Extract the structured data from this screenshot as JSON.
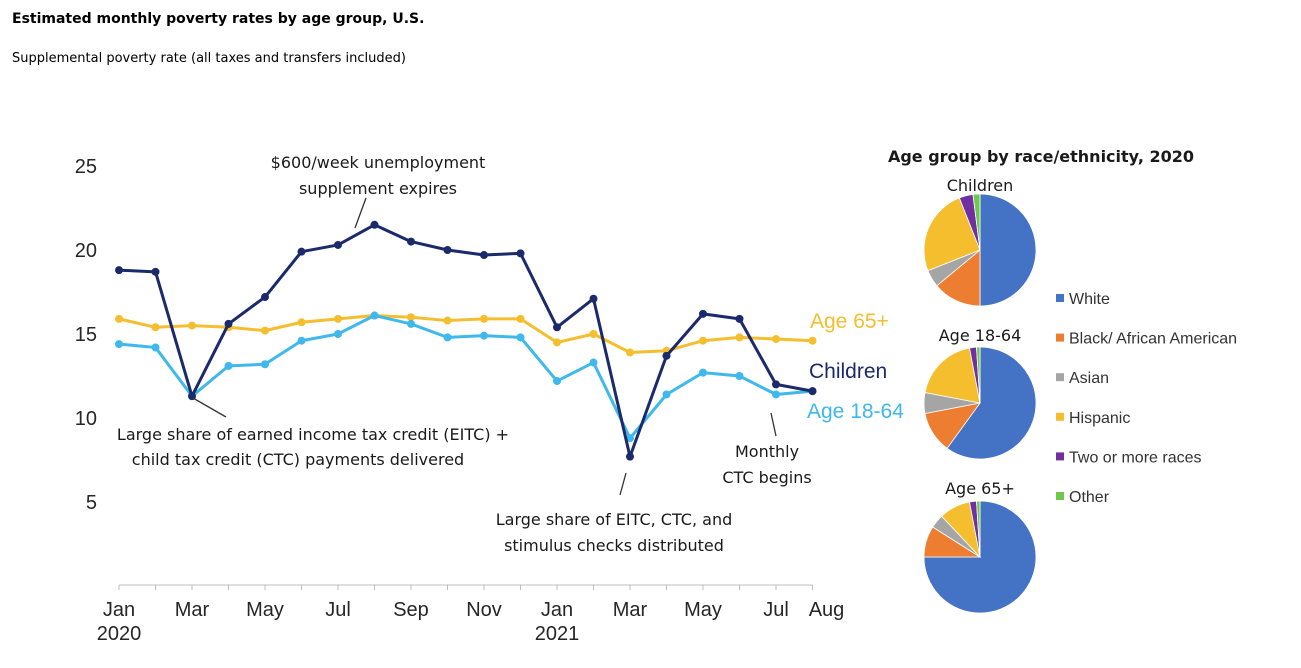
{
  "header": {
    "title": "Estimated monthly poverty rates by age group, U.S.",
    "subtitle": "Supplemental poverty rate (all taxes and transfers included)"
  },
  "chart_data": [
    {
      "type": "line",
      "x": [
        "2020-01",
        "2020-02",
        "2020-03",
        "2020-04",
        "2020-05",
        "2020-06",
        "2020-07",
        "2020-08",
        "2020-09",
        "2020-10",
        "2020-11",
        "2020-12",
        "2021-01",
        "2021-02",
        "2021-03",
        "2021-04",
        "2021-05",
        "2021-06",
        "2021-07",
        "2021-08"
      ],
      "x_tick_labels": [
        {
          "label": "Jan",
          "year": "2020",
          "index": 0
        },
        {
          "label": "Mar",
          "year": "",
          "index": 2
        },
        {
          "label": "May",
          "year": "",
          "index": 4
        },
        {
          "label": "Jul",
          "year": "",
          "index": 6
        },
        {
          "label": "Sep",
          "year": "",
          "index": 8
        },
        {
          "label": "Nov",
          "year": "",
          "index": 10
        },
        {
          "label": "Jan",
          "year": "2021",
          "index": 12
        },
        {
          "label": "Mar",
          "year": "",
          "index": 14
        },
        {
          "label": "May",
          "year": "",
          "index": 16
        },
        {
          "label": "Jul",
          "year": "",
          "index": 18
        },
        {
          "label": "Aug",
          "year": "",
          "index": 19
        }
      ],
      "y_ticks": [
        5,
        10,
        15,
        20,
        25
      ],
      "ylim": [
        0,
        26
      ],
      "series": [
        {
          "name": "Children",
          "color": "#1b2a6b",
          "values": [
            18.8,
            18.7,
            11.3,
            15.6,
            17.2,
            19.9,
            20.3,
            21.5,
            20.5,
            20.0,
            19.7,
            19.8,
            15.4,
            17.1,
            7.7,
            13.7,
            16.2,
            15.9,
            12.0,
            11.6
          ]
        },
        {
          "name": "Age 65+",
          "color": "#f5be2e",
          "values": [
            15.9,
            15.4,
            15.5,
            15.4,
            15.2,
            15.7,
            15.9,
            16.1,
            16.0,
            15.8,
            15.9,
            15.9,
            14.5,
            15.0,
            13.9,
            14.0,
            14.6,
            14.8,
            14.7,
            14.6
          ]
        },
        {
          "name": "Age 18-64",
          "color": "#3fb8ec",
          "values": [
            14.4,
            14.2,
            11.3,
            13.1,
            13.2,
            14.6,
            15.0,
            16.1,
            15.6,
            14.8,
            14.9,
            14.8,
            12.2,
            13.3,
            8.8,
            11.4,
            12.7,
            12.5,
            11.4,
            11.6
          ]
        }
      ],
      "annotations": [
        {
          "lines": [
            "$600/week unemployment",
            "supplement expires"
          ]
        },
        {
          "lines": [
            "Large share of earned income tax credit (EITC) +",
            "child tax credit (CTC) payments delivered"
          ]
        },
        {
          "lines": [
            "Large share of EITC, CTC, and",
            "stimulus checks distributed"
          ]
        },
        {
          "lines": [
            "Monthly",
            "CTC begins"
          ]
        }
      ]
    },
    {
      "type": "pie",
      "title": "Age group by race/ethnicity, 2020",
      "categories": [
        "White",
        "Black/ African American",
        "Asian",
        "Hispanic",
        "Two or more races",
        "Other"
      ],
      "colors": [
        "#4472c4",
        "#ed7d31",
        "#a5a5a5",
        "#f5be2e",
        "#7030a0",
        "#70c84a"
      ],
      "pies": [
        {
          "name": "Children",
          "values": [
            50,
            14,
            5,
            25,
            4,
            2
          ]
        },
        {
          "name": "Age 18-64",
          "values": [
            60,
            12,
            6,
            19,
            2,
            1
          ]
        },
        {
          "name": "Age 65+",
          "values": [
            75,
            9,
            4,
            9,
            2,
            1
          ]
        }
      ]
    }
  ]
}
